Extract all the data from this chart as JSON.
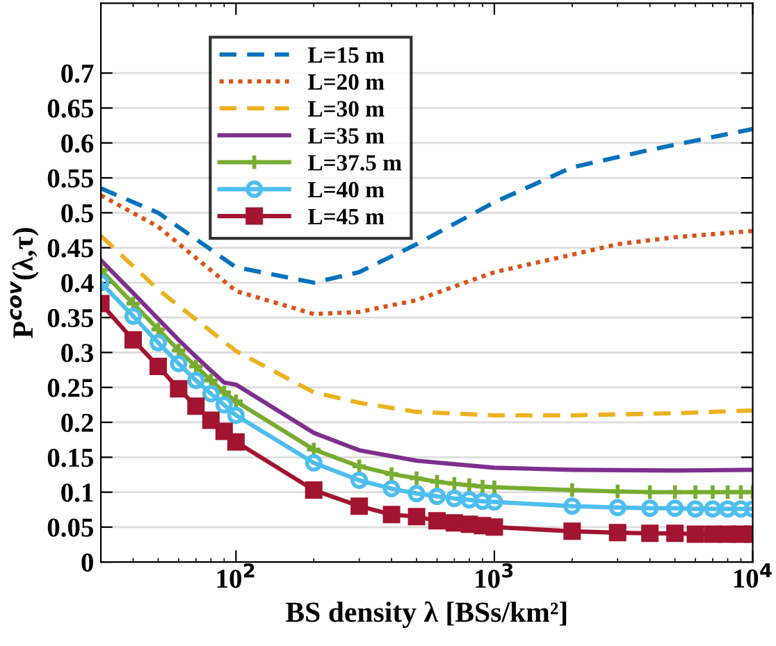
{
  "chart_data": {
    "type": "line",
    "xlabel": "BS density λ [BSs/km²]",
    "ylabel": "P$^{cov}$(λ,τ)",
    "log": "x",
    "xlim": [
      30,
      10000
    ],
    "ylim": [
      0,
      0.8
    ],
    "xticks": [
      {
        "value": 100,
        "label": "10$^{2}$"
      },
      {
        "value": 1000,
        "label": "10$^{3}$"
      },
      {
        "value": 10000,
        "label": "10$^{4}$"
      }
    ],
    "yticks": [
      0,
      0.05,
      0.1,
      0.15,
      0.2,
      0.25,
      0.3,
      0.35,
      0.4,
      0.45,
      0.5,
      0.55,
      0.6,
      0.65,
      0.7
    ],
    "grid": "y",
    "legend": "top left",
    "series": [
      {
        "name": "L=15 m",
        "color": "#0072bd",
        "line_style": "dashed",
        "marker": "none",
        "x": [
          30,
          50,
          100,
          200,
          300,
          500,
          1000,
          2000,
          4000,
          10000
        ],
        "values": [
          0.535,
          0.5,
          0.422,
          0.4,
          0.415,
          0.455,
          0.515,
          0.565,
          0.59,
          0.62
        ]
      },
      {
        "name": "L=20 m",
        "color": "#d95319",
        "line_style": "dotted",
        "marker": "none",
        "x": [
          30,
          50,
          100,
          200,
          300,
          500,
          1000,
          2000,
          3000,
          5000,
          10000
        ],
        "values": [
          0.525,
          0.48,
          0.388,
          0.355,
          0.358,
          0.375,
          0.415,
          0.44,
          0.455,
          0.465,
          0.474
        ]
      },
      {
        "name": "L=30 m",
        "color": "#edb120",
        "line_style": "dashed",
        "marker": "none",
        "x": [
          30,
          50,
          100,
          200,
          300,
          500,
          1000,
          2000,
          5000,
          10000
        ],
        "values": [
          0.467,
          0.39,
          0.302,
          0.243,
          0.228,
          0.215,
          0.21,
          0.21,
          0.213,
          0.217
        ]
      },
      {
        "name": "L=35 m",
        "color": "#7e2f8e",
        "line_style": "solid",
        "marker": "none",
        "x": [
          30,
          40,
          50,
          60,
          70,
          80,
          90,
          100,
          200,
          300,
          500,
          1000,
          2000,
          5000,
          10000
        ],
        "values": [
          0.432,
          0.385,
          0.348,
          0.318,
          0.294,
          0.274,
          0.257,
          0.254,
          0.185,
          0.16,
          0.145,
          0.135,
          0.132,
          0.131,
          0.132
        ]
      },
      {
        "name": "L=37.5 m",
        "color": "#77ac30",
        "line_style": "solid",
        "marker": "cross",
        "x": [
          30,
          40,
          50,
          60,
          70,
          80,
          90,
          100,
          200,
          300,
          400,
          500,
          600,
          700,
          800,
          900,
          1000,
          2000,
          3000,
          4000,
          5000,
          6000,
          7000,
          8000,
          9000,
          10000
        ],
        "values": [
          0.418,
          0.37,
          0.333,
          0.303,
          0.28,
          0.26,
          0.243,
          0.23,
          0.161,
          0.137,
          0.126,
          0.12,
          0.115,
          0.112,
          0.11,
          0.108,
          0.107,
          0.103,
          0.101,
          0.1,
          0.1,
          0.1,
          0.1,
          0.1,
          0.1,
          0.1
        ]
      },
      {
        "name": "L=40 m",
        "color": "#4dbeee",
        "line_style": "solid",
        "marker": "circle",
        "x": [
          30,
          40,
          50,
          60,
          70,
          80,
          90,
          100,
          200,
          300,
          400,
          500,
          600,
          700,
          800,
          900,
          1000,
          2000,
          3000,
          4000,
          5000,
          6000,
          7000,
          8000,
          9000,
          10000
        ],
        "values": [
          0.4,
          0.352,
          0.314,
          0.284,
          0.26,
          0.241,
          0.225,
          0.21,
          0.142,
          0.117,
          0.105,
          0.098,
          0.094,
          0.091,
          0.089,
          0.087,
          0.086,
          0.08,
          0.078,
          0.077,
          0.077,
          0.076,
          0.076,
          0.076,
          0.076,
          0.076
        ]
      },
      {
        "name": "L=45 m",
        "color": "#a2142f",
        "line_style": "solid",
        "marker": "square",
        "x": [
          30,
          40,
          50,
          60,
          70,
          80,
          90,
          100,
          200,
          300,
          400,
          500,
          600,
          700,
          800,
          900,
          1000,
          2000,
          3000,
          4000,
          5000,
          6000,
          7000,
          8000,
          9000,
          10000
        ],
        "values": [
          0.37,
          0.318,
          0.28,
          0.248,
          0.223,
          0.203,
          0.187,
          0.172,
          0.103,
          0.08,
          0.068,
          0.065,
          0.059,
          0.056,
          0.054,
          0.052,
          0.05,
          0.044,
          0.042,
          0.041,
          0.041,
          0.04,
          0.04,
          0.04,
          0.04,
          0.04
        ]
      }
    ]
  }
}
